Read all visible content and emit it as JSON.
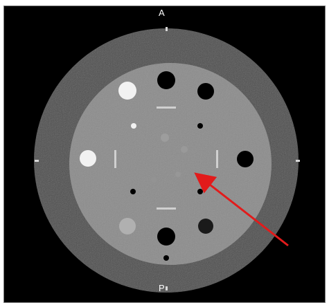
{
  "viewer": {
    "orientation": {
      "anterior": "A",
      "posterior": "P"
    }
  },
  "colors": {
    "background": "#000000",
    "outer_ring": "#4f4f4f",
    "inner_disk": "#8c8c8c",
    "bright_insert": "#f2f2f2",
    "dark_insert": "#000000",
    "low_contrast_insert": "#9a9a9a",
    "arrow": "#e21b1b"
  },
  "annotation": {
    "type": "arrow",
    "icon": "red-arrow-icon",
    "points_to": "low-contrast-insert"
  }
}
